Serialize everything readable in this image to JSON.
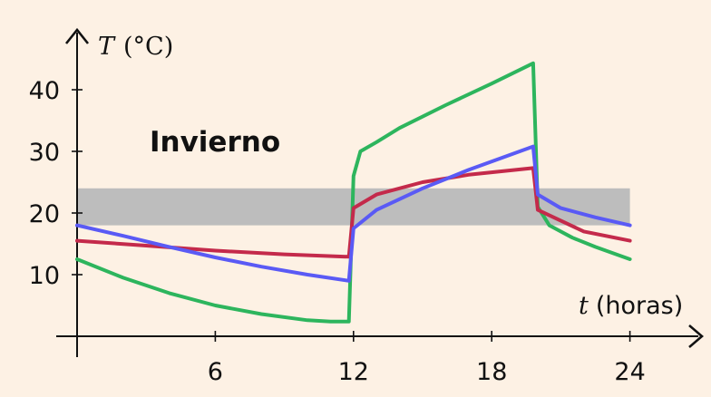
{
  "chart_data": {
    "type": "line",
    "x_unit_label": "(horas)",
    "x_symbol": "t",
    "y_symbol": "T",
    "y_unit_label": "(°C)",
    "annotation": "Invierno",
    "x_ticks": [
      6,
      12,
      18,
      24
    ],
    "y_ticks": [
      10,
      20,
      30,
      40
    ],
    "xlim": [
      0,
      24
    ],
    "ylim": [
      0,
      45
    ],
    "comfort_band": {
      "y_min": 18,
      "y_max": 24,
      "x_min": 0,
      "x_max": 24,
      "color": "#bdbdbd"
    },
    "grid": false,
    "series": [
      {
        "color": "#2db55d",
        "points": [
          [
            0,
            12.5
          ],
          [
            2,
            9.5
          ],
          [
            4,
            7
          ],
          [
            6,
            5
          ],
          [
            8,
            3.6
          ],
          [
            10,
            2.6
          ],
          [
            11,
            2.4
          ],
          [
            11.8,
            2.4
          ],
          [
            12,
            26
          ],
          [
            12.3,
            30
          ],
          [
            13,
            31.5
          ],
          [
            14,
            33.8
          ],
          [
            16,
            37.5
          ],
          [
            18,
            41
          ],
          [
            19.8,
            44.3
          ],
          [
            20,
            21
          ],
          [
            20.5,
            18
          ],
          [
            21.5,
            16
          ],
          [
            22.5,
            14.5
          ],
          [
            24,
            12.5
          ]
        ]
      },
      {
        "color": "#c42a4b",
        "points": [
          [
            0,
            15.5
          ],
          [
            3,
            14.7
          ],
          [
            6,
            13.9
          ],
          [
            9,
            13.3
          ],
          [
            11.8,
            12.9
          ],
          [
            12,
            20.8
          ],
          [
            13,
            23
          ],
          [
            15,
            25
          ],
          [
            17,
            26.2
          ],
          [
            19.8,
            27.3
          ],
          [
            20,
            20.5
          ],
          [
            22,
            17
          ],
          [
            24,
            15.5
          ]
        ]
      },
      {
        "color": "#5a5af5",
        "points": [
          [
            0,
            18
          ],
          [
            2,
            16.3
          ],
          [
            4,
            14.5
          ],
          [
            6,
            12.8
          ],
          [
            8,
            11.3
          ],
          [
            10,
            10
          ],
          [
            11.8,
            9
          ],
          [
            12,
            17.5
          ],
          [
            13,
            20.5
          ],
          [
            15,
            24
          ],
          [
            17,
            27
          ],
          [
            19.8,
            30.8
          ],
          [
            20,
            23
          ],
          [
            21,
            20.8
          ],
          [
            22.5,
            19.3
          ],
          [
            24,
            18
          ]
        ]
      }
    ]
  }
}
